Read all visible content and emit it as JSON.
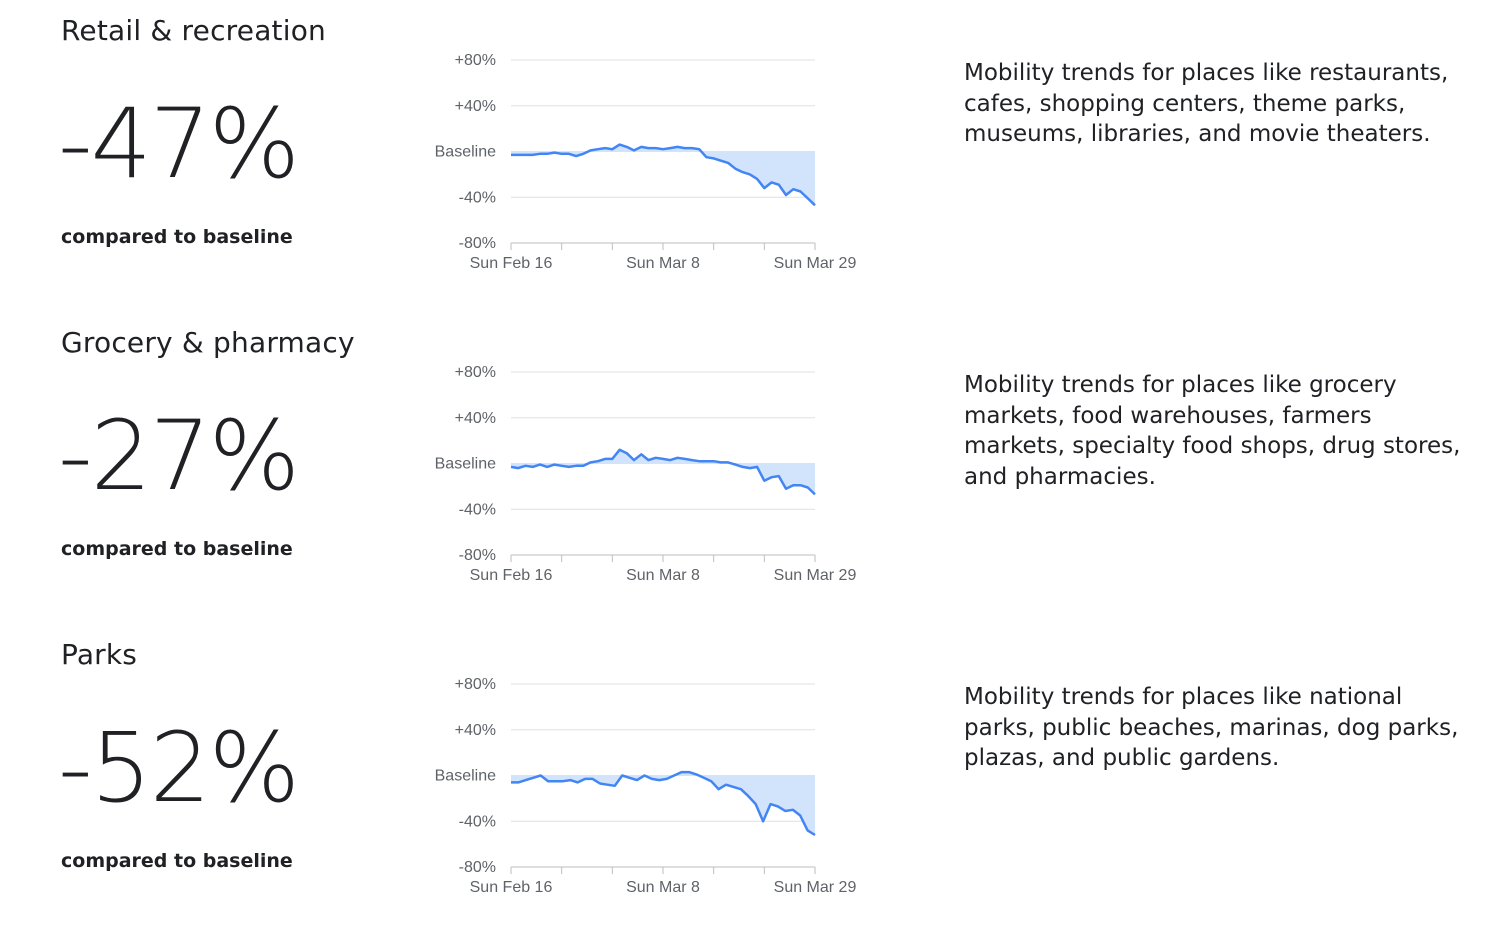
{
  "sections": [
    {
      "title": "Retail & recreation",
      "change": "-47%",
      "compared": "compared to baseline",
      "description": "Mobility trends for places like restaurants, cafes, shopping centers, theme parks, museums, libraries, and movie theaters."
    },
    {
      "title": "Grocery & pharmacy",
      "change": "-27%",
      "compared": "compared to baseline",
      "description": "Mobility trends for places like grocery markets, food warehouses, farmers markets, specialty food shops, drug stores, and pharmacies."
    },
    {
      "title": "Parks",
      "change": "-52%",
      "compared": "compared to baseline",
      "description": "Mobility trends for places like national parks, public beaches, marinas, dog parks, plazas, and public gardens."
    }
  ],
  "colors": {
    "line": "#4285f4",
    "fill": "#d2e3fc",
    "grid": "#e0e0e0",
    "text": "#202124",
    "tick": "#5f6368"
  },
  "chart_data": [
    {
      "type": "area",
      "y_ticks": [
        "+80%",
        "+40%",
        "Baseline",
        "-40%",
        "-80%"
      ],
      "ylim": [
        -80,
        80
      ],
      "x_tick_labels": [
        "Sun Feb 16",
        "Sun Mar 8",
        "Sun Mar 29"
      ],
      "x_tick_days": [
        0,
        21,
        42
      ],
      "values": [
        -3,
        -3,
        -3,
        -3,
        -2,
        -2,
        -1,
        -2,
        -2,
        -4,
        -2,
        1,
        2,
        3,
        2,
        6,
        4,
        1,
        4,
        3,
        3,
        2,
        3,
        4,
        3,
        3,
        2,
        -5,
        -6,
        -8,
        -10,
        -15,
        -18,
        -20,
        -24,
        -32,
        -27,
        -29,
        -38,
        -33,
        -35,
        -41,
        -47
      ]
    },
    {
      "type": "area",
      "y_ticks": [
        "+80%",
        "+40%",
        "Baseline",
        "-40%",
        "-80%"
      ],
      "ylim": [
        -80,
        80
      ],
      "x_tick_labels": [
        "Sun Feb 16",
        "Sun Mar 8",
        "Sun Mar 29"
      ],
      "x_tick_days": [
        0,
        21,
        42
      ],
      "values": [
        -3,
        -4,
        -2,
        -3,
        -1,
        -3,
        -1,
        -2,
        -3,
        -2,
        -2,
        1,
        2,
        4,
        4,
        12,
        9,
        3,
        8,
        3,
        5,
        4,
        3,
        5,
        4,
        3,
        2,
        2,
        2,
        1,
        1,
        -1,
        -3,
        -4,
        -3,
        -15,
        -12,
        -11,
        -22,
        -19,
        -19,
        -21,
        -27
      ]
    },
    {
      "type": "area",
      "y_ticks": [
        "+80%",
        "+40%",
        "Baseline",
        "-40%",
        "-80%"
      ],
      "ylim": [
        -80,
        80
      ],
      "x_tick_labels": [
        "Sun Feb 16",
        "Sun Mar 8",
        "Sun Mar 29"
      ],
      "x_tick_days": [
        0,
        21,
        42
      ],
      "values": [
        -6,
        -6,
        -4,
        -2,
        0,
        -5,
        -5,
        -5,
        -4,
        -6,
        -3,
        -3,
        -7,
        -8,
        -9,
        0,
        -2,
        -4,
        0,
        -3,
        -4,
        -3,
        0,
        3,
        3,
        1,
        -2,
        -5,
        -12,
        -8,
        -10,
        -12,
        -18,
        -25,
        -40,
        -25,
        -27,
        -31,
        -30,
        -35,
        -48,
        -52
      ]
    }
  ]
}
